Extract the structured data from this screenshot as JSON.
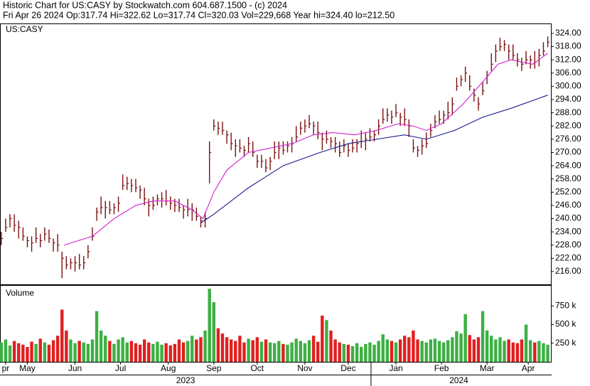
{
  "header": {
    "line1": "Historic Chart for US:CASY by Stockwatch.com 604.687.1500 - (c) 2024",
    "line2": "Fri Apr 26 2024  Op:317.74  Hi=322.62  Lo=317.74  Cl=320.03  Vol=229,668  Year hi=324.40  lo=212.50"
  },
  "chart_data": [
    {
      "type": "ohlc",
      "label": "US:CASY",
      "color": "#7a1010",
      "x": [
        0,
        2,
        4,
        6,
        8,
        10,
        12,
        14,
        16,
        18,
        20,
        22,
        24,
        26,
        28,
        30,
        32,
        34,
        36,
        38,
        40,
        42,
        44,
        46,
        48,
        50,
        52,
        54,
        56,
        58,
        60,
        62,
        64,
        66,
        68,
        70,
        72,
        74,
        76,
        78,
        80,
        82,
        84,
        86,
        88,
        90,
        92,
        94,
        96,
        98,
        100,
        102,
        104,
        106,
        108,
        110,
        112,
        114,
        116,
        118,
        120,
        122,
        124,
        126,
        128,
        130,
        132,
        134,
        136,
        138,
        140,
        142,
        144,
        146,
        148,
        150,
        152,
        154,
        156,
        158,
        160,
        162,
        164,
        166,
        168,
        170,
        172,
        174,
        176,
        178,
        180,
        182,
        184,
        186,
        188,
        190,
        192,
        194,
        196,
        198,
        200,
        202,
        204,
        206,
        208,
        210,
        212,
        214,
        216,
        218,
        220,
        222,
        224,
        226,
        228,
        230,
        232,
        234,
        236,
        238,
        240,
        242,
        244,
        246,
        248,
        250,
        252
      ],
      "high": [
        234,
        240,
        242,
        242,
        239,
        236,
        232,
        232,
        236,
        233,
        236,
        235,
        231,
        233,
        225,
        223,
        222,
        223,
        224,
        223,
        228,
        236,
        245,
        250,
        248,
        248,
        247,
        250,
        260,
        259,
        258,
        258,
        255,
        254,
        249,
        250,
        251,
        252,
        253,
        250,
        249,
        249,
        246,
        249,
        247,
        245,
        241,
        243,
        275,
        285,
        284,
        284,
        280,
        279,
        276,
        276,
        273,
        277,
        275,
        269,
        269,
        267,
        268,
        275,
        275,
        275,
        275,
        277,
        282,
        284,
        285,
        287,
        284,
        284,
        279,
        280,
        277,
        277,
        275,
        276,
        274,
        276,
        276,
        280,
        279,
        281,
        280,
        285,
        290,
        290,
        289,
        292,
        288,
        290,
        285,
        276,
        273,
        276,
        279,
        283,
        287,
        289,
        289,
        293,
        295,
        304,
        305,
        309,
        305,
        299,
        295,
        302,
        307,
        315,
        319,
        322,
        321,
        319,
        319,
        315,
        313,
        316,
        314,
        316,
        317,
        320,
        322.62
      ],
      "low": [
        228,
        234,
        236,
        234,
        231,
        230,
        227,
        225,
        229,
        227,
        230,
        229,
        225,
        225,
        213,
        217,
        217,
        216,
        217,
        217,
        222,
        230,
        239,
        242,
        240,
        242,
        242,
        243,
        253,
        253,
        252,
        252,
        249,
        246,
        241,
        244,
        246,
        245,
        246,
        244,
        243,
        243,
        240,
        241,
        239,
        239,
        236,
        236,
        256,
        280,
        278,
        278,
        274,
        271,
        268,
        270,
        268,
        270,
        268,
        263,
        263,
        261,
        262,
        267,
        267,
        269,
        270,
        270,
        275,
        278,
        279,
        281,
        278,
        276,
        271,
        274,
        272,
        270,
        268,
        270,
        268,
        270,
        270,
        272,
        271,
        275,
        275,
        278,
        283,
        284,
        283,
        286,
        282,
        282,
        277,
        270,
        268,
        269,
        272,
        277,
        281,
        283,
        283,
        285,
        287,
        298,
        300,
        302,
        298,
        293,
        289,
        296,
        301,
        307,
        311,
        316,
        316,
        312,
        312,
        309,
        307,
        310,
        308,
        308,
        309,
        314,
        317.74
      ],
      "close": [
        231,
        236,
        240,
        237,
        236,
        232,
        230,
        229,
        231,
        230,
        233,
        231,
        229,
        228,
        222,
        219,
        220,
        220,
        219,
        220,
        225,
        232,
        243,
        245,
        245,
        244,
        245,
        247,
        255,
        256,
        255,
        254,
        253,
        249,
        246,
        246,
        249,
        249,
        248,
        247,
        246,
        245,
        244,
        244,
        244,
        241,
        239,
        240,
        270,
        282,
        281,
        280,
        278,
        274,
        273,
        272,
        271,
        274,
        270,
        266,
        266,
        263,
        266,
        270,
        272,
        271,
        273,
        274,
        277,
        281,
        282,
        283,
        282,
        279,
        276,
        276,
        275,
        274,
        270,
        273,
        271,
        272,
        274,
        275,
        276,
        277,
        278,
        282,
        285,
        287,
        286,
        288,
        286,
        285,
        282,
        272,
        271,
        273,
        274,
        280,
        284,
        285,
        287,
        288,
        292,
        300,
        303,
        306,
        300,
        296,
        292,
        298,
        305,
        310,
        316,
        318,
        319,
        316,
        314,
        312,
        310,
        312,
        312,
        311,
        314,
        316,
        320.03
      ],
      "lines": [
        {
          "color": "#d01fd0",
          "x": [
            29,
            42,
            52,
            62,
            70,
            80,
            88,
            93,
            98,
            104,
            114,
            124,
            134,
            144,
            153,
            163,
            173,
            183,
            190,
            196,
            203,
            213,
            222,
            229,
            235,
            245,
            252
          ],
          "values": [
            228,
            232,
            240,
            246,
            248,
            248,
            244,
            240,
            252,
            262,
            270,
            272,
            274,
            278,
            279,
            278,
            280,
            283,
            282,
            280,
            283,
            292,
            302,
            310,
            312,
            310,
            315
          ]
        },
        {
          "color": "#1a1a8c",
          "x": [
            92,
            98,
            114,
            130,
            147,
            160,
            173,
            186,
            196,
            209,
            222,
            235,
            252
          ],
          "values": [
            238,
            242,
            254,
            264,
            270,
            274,
            276,
            278,
            276,
            280,
            286,
            290,
            296
          ]
        }
      ],
      "xlim": [
        -0.6,
        252.8
      ],
      "ylim": [
        210.2,
        328.5
      ],
      "yticks": [
        {
          "value": 216,
          "label": "216.00"
        },
        {
          "value": 222,
          "label": "222.00"
        },
        {
          "value": 228,
          "label": "228.00"
        },
        {
          "value": 234,
          "label": "234.00"
        },
        {
          "value": 240,
          "label": "240.00"
        },
        {
          "value": 246,
          "label": "246.00"
        },
        {
          "value": 252,
          "label": "252.00"
        },
        {
          "value": 258,
          "label": "258.00"
        },
        {
          "value": 264,
          "label": "264.00"
        },
        {
          "value": 270,
          "label": "270.00"
        },
        {
          "value": 276,
          "label": "276.00"
        },
        {
          "value": 282,
          "label": "282.00"
        },
        {
          "value": 288,
          "label": "288.00"
        },
        {
          "value": 294,
          "label": "294.00"
        },
        {
          "value": 300,
          "label": "300.00"
        },
        {
          "value": 306,
          "label": "306.00"
        },
        {
          "value": 312,
          "label": "312.00"
        },
        {
          "value": 318,
          "label": "318.00"
        },
        {
          "value": 324,
          "label": "324.00"
        }
      ]
    },
    {
      "type": "bar",
      "label": "Volume",
      "up_color": "#3cb043",
      "down_color": "#e02020",
      "x": [
        0,
        2,
        4,
        6,
        8,
        10,
        12,
        14,
        16,
        18,
        20,
        22,
        24,
        26,
        28,
        30,
        32,
        34,
        36,
        38,
        40,
        42,
        44,
        46,
        48,
        50,
        52,
        54,
        56,
        58,
        60,
        62,
        64,
        66,
        68,
        70,
        72,
        74,
        76,
        78,
        80,
        82,
        84,
        86,
        88,
        90,
        92,
        94,
        96,
        98,
        100,
        102,
        104,
        106,
        108,
        110,
        112,
        114,
        116,
        118,
        120,
        122,
        124,
        126,
        128,
        130,
        132,
        134,
        136,
        138,
        140,
        142,
        144,
        146,
        148,
        150,
        152,
        154,
        156,
        158,
        160,
        162,
        164,
        166,
        168,
        170,
        172,
        174,
        176,
        178,
        180,
        182,
        184,
        186,
        188,
        190,
        192,
        194,
        196,
        198,
        200,
        202,
        204,
        206,
        208,
        210,
        212,
        214,
        216,
        218,
        220,
        222,
        224,
        226,
        228,
        230,
        232,
        234,
        236,
        238,
        240,
        242,
        244,
        246,
        248,
        250,
        252
      ],
      "values": [
        260000,
        300000,
        220000,
        280000,
        250000,
        230000,
        200000,
        270000,
        240000,
        310000,
        260000,
        230000,
        290000,
        350000,
        700000,
        420000,
        300000,
        250000,
        280000,
        260000,
        240000,
        300000,
        680000,
        420000,
        350000,
        280000,
        240000,
        300000,
        330000,
        260000,
        280000,
        250000,
        230000,
        300000,
        260000,
        240000,
        270000,
        230000,
        250000,
        220000,
        240000,
        300000,
        260000,
        280000,
        350000,
        300000,
        330000,
        420000,
        980000,
        800000,
        450000,
        380000,
        330000,
        300000,
        280000,
        350000,
        260000,
        310000,
        290000,
        330000,
        270000,
        300000,
        260000,
        250000,
        280000,
        240000,
        230000,
        260000,
        310000,
        280000,
        250000,
        290000,
        350000,
        270000,
        620000,
        560000,
        420000,
        300000,
        260000,
        240000,
        230000,
        210000,
        250000,
        200000,
        240000,
        260000,
        230000,
        280000,
        370000,
        300000,
        280000,
        260000,
        300000,
        350000,
        330000,
        420000,
        300000,
        280000,
        260000,
        300000,
        310000,
        280000,
        260000,
        290000,
        330000,
        410000,
        380000,
        640000,
        360000,
        300000,
        330000,
        680000,
        420000,
        350000,
        300000,
        330000,
        280000,
        300000,
        260000,
        250000,
        300000,
        500000,
        290000,
        260000,
        280000,
        250000,
        229668
      ],
      "xlim": [
        -0.6,
        252.8
      ],
      "ylim": [
        0,
        1020000
      ],
      "yticks": [
        {
          "value": 250000,
          "label": "250 k"
        },
        {
          "value": 500000,
          "label": "500 k"
        },
        {
          "value": 750000,
          "label": "750 k"
        }
      ],
      "xticks": [
        {
          "value": 2,
          "label": "pr"
        },
        {
          "value": 12,
          "label": "May"
        },
        {
          "value": 34,
          "label": "Jun"
        },
        {
          "value": 55,
          "label": "Jul"
        },
        {
          "value": 77,
          "label": "Aug"
        },
        {
          "value": 98,
          "label": "Sep"
        },
        {
          "value": 118,
          "label": "Oct"
        },
        {
          "value": 140,
          "label": "Nov"
        },
        {
          "value": 160,
          "label": "Dec"
        },
        {
          "value": 182,
          "label": "Jan"
        },
        {
          "value": 203,
          "label": "Feb"
        },
        {
          "value": 224,
          "label": "Mar"
        },
        {
          "value": 243,
          "label": "Apr"
        }
      ],
      "year_ticks": [
        {
          "value": 85,
          "label": "2023"
        },
        {
          "value": 211,
          "label": "2024"
        }
      ],
      "year_divider": 170.5
    }
  ]
}
